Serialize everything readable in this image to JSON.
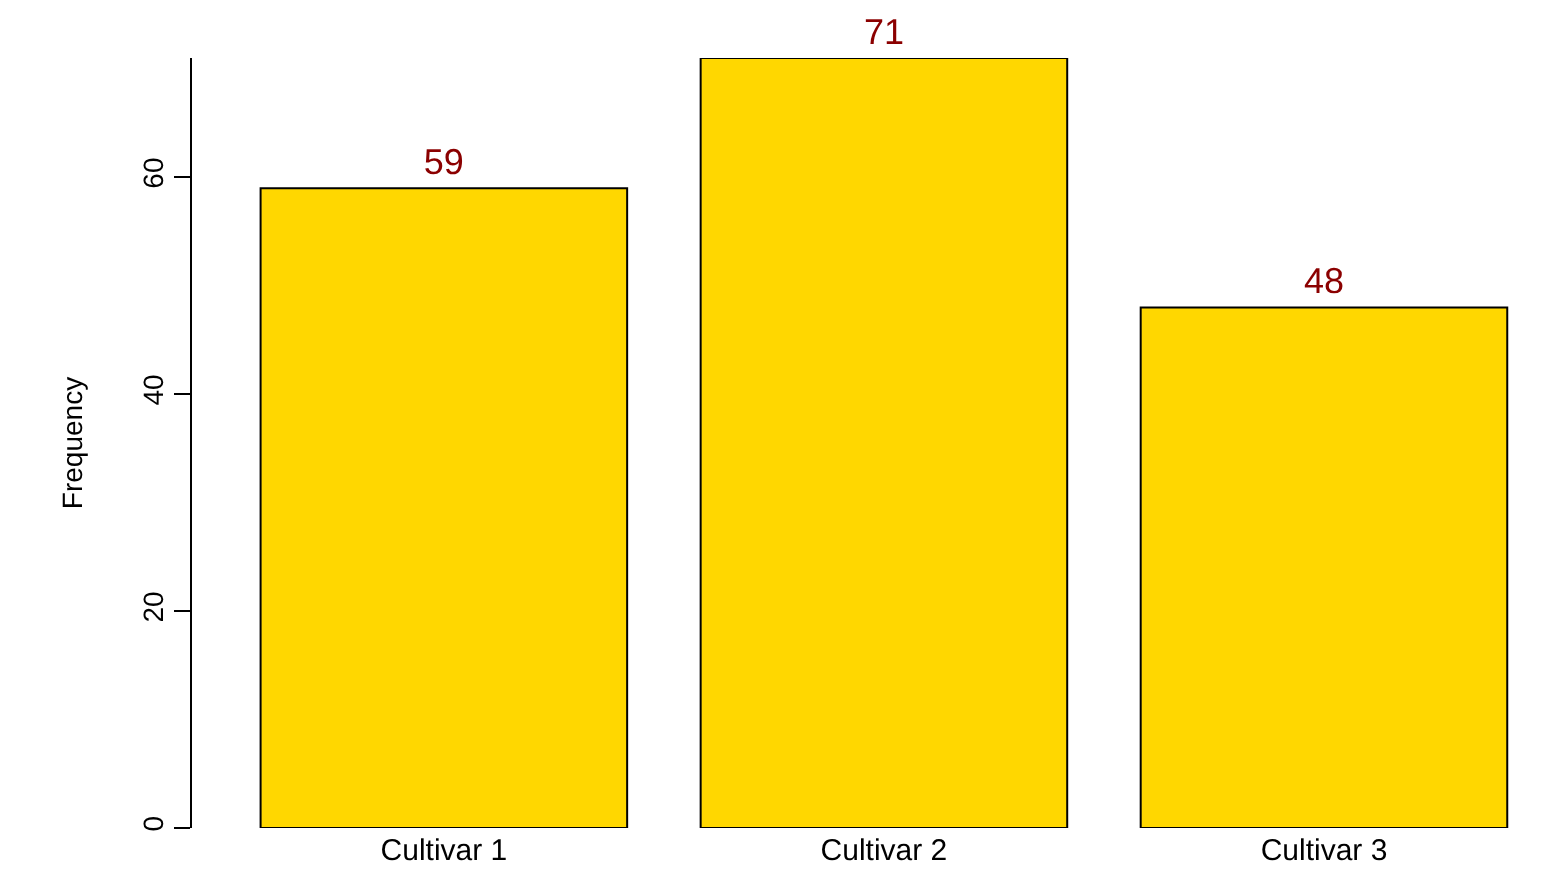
{
  "chart_data": {
    "type": "bar",
    "ylabel": "Frequency",
    "categories": [
      "Cultivar 1",
      "Cultivar 2",
      "Cultivar 3"
    ],
    "values": [
      59,
      71,
      48
    ],
    "color": "#ffd700",
    "ylim": [
      0,
      71
    ],
    "yticks": [
      0,
      20,
      40,
      60
    ],
    "data_labels": true,
    "grid": false,
    "legend": false
  }
}
